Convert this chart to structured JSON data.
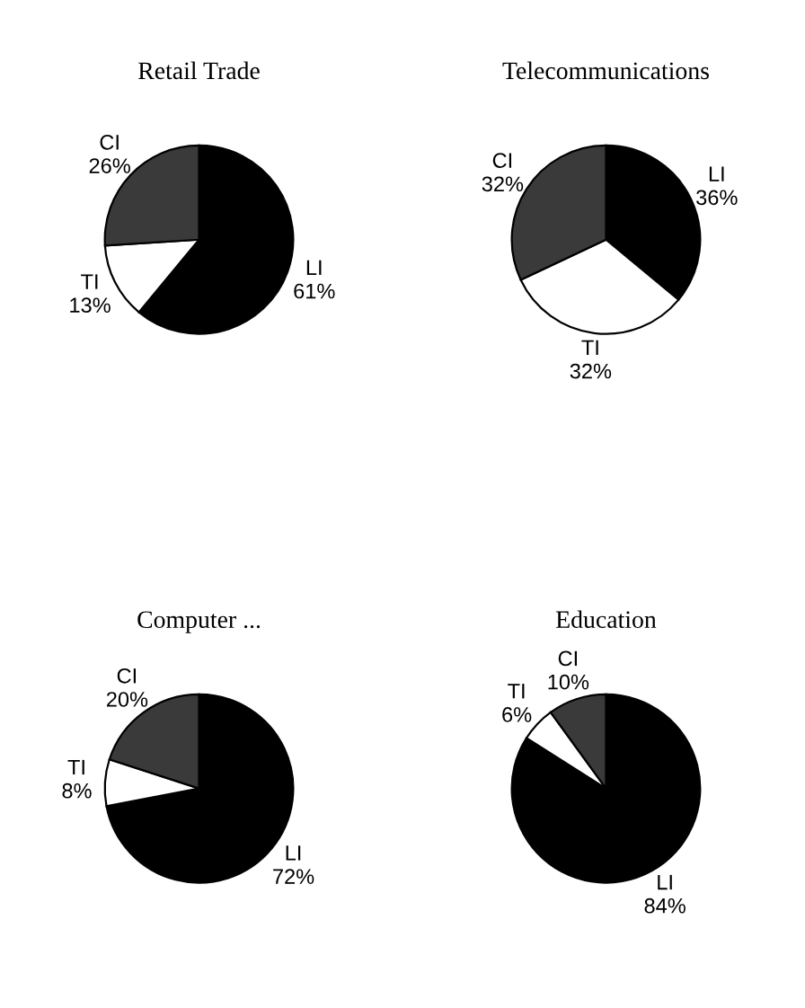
{
  "chart_data": [
    {
      "type": "pie",
      "title": "Retail Trade",
      "categories": [
        "LI",
        "TI",
        "CI"
      ],
      "values": [
        61,
        13,
        26
      ],
      "value_labels": [
        "61%",
        "13%",
        "26%"
      ],
      "colors": [
        "#000000",
        "#ffffff",
        "#3a3a3a"
      ]
    },
    {
      "type": "pie",
      "title": "Telecommunications",
      "categories": [
        "LI",
        "TI",
        "CI"
      ],
      "values": [
        36,
        32,
        32
      ],
      "value_labels": [
        "36%",
        "32%",
        "32%"
      ],
      "colors": [
        "#000000",
        "#ffffff",
        "#3a3a3a"
      ]
    },
    {
      "type": "pie",
      "title": "Computer ...",
      "categories": [
        "LI",
        "TI",
        "CI"
      ],
      "values": [
        72,
        8,
        20
      ],
      "value_labels": [
        "72%",
        "8%",
        "20%"
      ],
      "colors": [
        "#000000",
        "#ffffff",
        "#3a3a3a"
      ]
    },
    {
      "type": "pie",
      "title": "Education",
      "categories": [
        "LI",
        "TI",
        "CI"
      ],
      "values": [
        84,
        6,
        10
      ],
      "value_labels": [
        "84%",
        "6%",
        "10%"
      ],
      "colors": [
        "#000000",
        "#ffffff",
        "#3a3a3a"
      ]
    }
  ]
}
